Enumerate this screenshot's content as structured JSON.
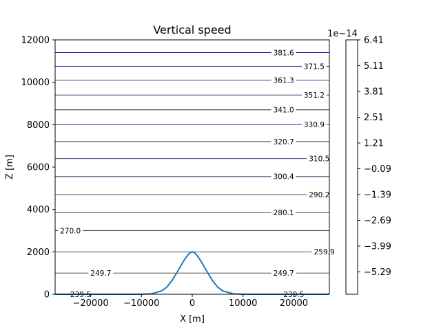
{
  "chart_data": {
    "type": "line",
    "title": "Vertical speed",
    "xlabel": "X [m]",
    "ylabel": "Z [m]",
    "xlim": [
      -27000,
      27000
    ],
    "ylim": [
      0,
      12000
    ],
    "xticks": [
      -20000,
      -10000,
      0,
      10000,
      20000
    ],
    "xtick_labels": [
      "−20000",
      "−10000",
      "0",
      "10000",
      "20000"
    ],
    "yticks": [
      0,
      2000,
      4000,
      6000,
      8000,
      10000,
      12000
    ],
    "ytick_labels": [
      "0",
      "2000",
      "4000",
      "6000",
      "8000",
      "10000",
      "12000"
    ],
    "terrain": {
      "name": "",
      "color": "#1f77b4",
      "x": [
        -27000,
        -10000,
        -8000,
        -6000,
        -5000,
        -4000,
        -3000,
        -2000,
        -1500,
        -1000,
        -500,
        0,
        500,
        1000,
        1500,
        2000,
        3000,
        4000,
        5000,
        6000,
        8000,
        10000,
        27000
      ],
      "z": [
        0,
        0,
        25,
        160,
        340,
        640,
        1030,
        1450,
        1640,
        1810,
        1950,
        2000,
        1950,
        1810,
        1640,
        1450,
        1030,
        640,
        340,
        160,
        25,
        0,
        0
      ]
    },
    "contour_levels": [
      {
        "z": 0,
        "label": "239.5",
        "labels_x": [
          -22000,
          20000
        ]
      },
      {
        "z": 1000,
        "label": "249.7",
        "labels_x": [
          -18000,
          18000
        ]
      },
      {
        "z": 2000,
        "label": "259.9",
        "labels_x": [
          26000
        ]
      },
      {
        "z": 3000,
        "label": "270.0",
        "labels_x": [
          -24000
        ]
      },
      {
        "z": 3850,
        "label": "280.1",
        "labels_x": [
          18000
        ]
      },
      {
        "z": 4700,
        "label": "290.2",
        "labels_x": [
          25000
        ]
      },
      {
        "z": 5550,
        "label": "300.4",
        "labels_x": [
          18000
        ]
      },
      {
        "z": 6400,
        "label": "310.5",
        "labels_x": [
          25000
        ]
      },
      {
        "z": 7200,
        "label": "320.7",
        "labels_x": [
          18000
        ]
      },
      {
        "z": 8000,
        "label": "330.9",
        "labels_x": [
          24000
        ]
      },
      {
        "z": 8700,
        "label": "341.0",
        "labels_x": [
          18000
        ]
      },
      {
        "z": 9400,
        "label": "351.2",
        "labels_x": [
          24000
        ]
      },
      {
        "z": 10100,
        "label": "361.3",
        "labels_x": [
          18000
        ]
      },
      {
        "z": 10750,
        "label": "371.5",
        "labels_x": [
          24000
        ]
      },
      {
        "z": 11400,
        "label": "381.6",
        "labels_x": [
          18000
        ]
      }
    ],
    "colorbar": {
      "exponent_label": "1e−14",
      "ticks": [
        "6.41",
        "5.11",
        "3.81",
        "2.51",
        "1.21",
        "−0.09",
        "−1.39",
        "−2.69",
        "−3.99",
        "−5.29"
      ],
      "fill": "#ffffff"
    }
  }
}
